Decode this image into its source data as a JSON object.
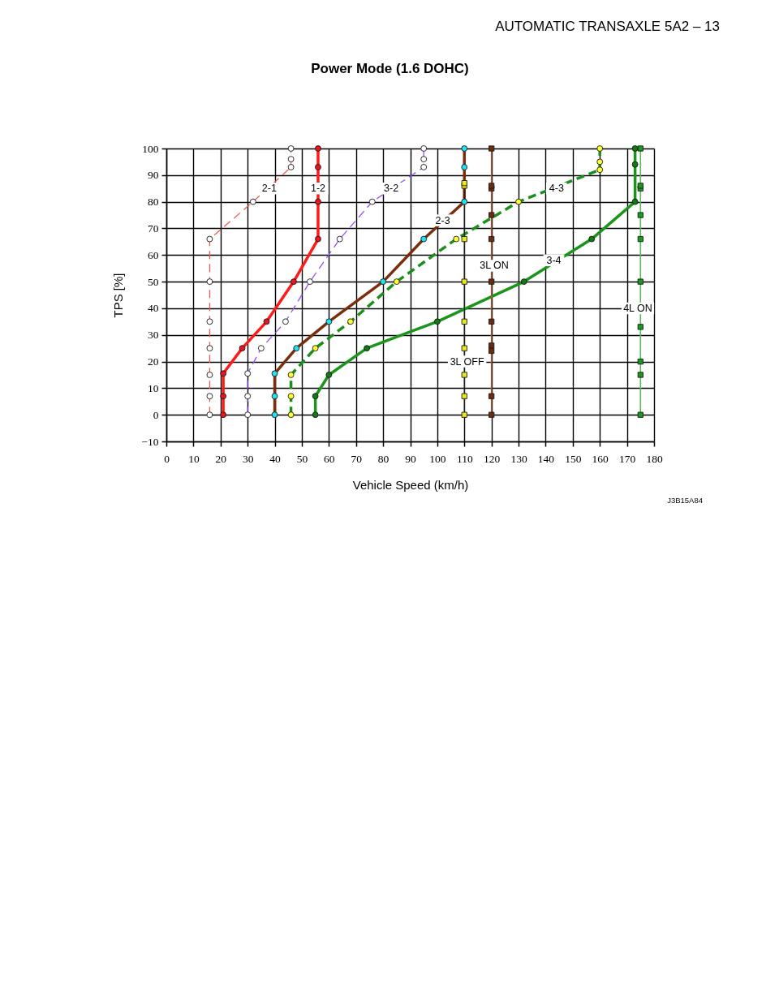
{
  "chart_data": {
    "type": "line",
    "title": "Power Mode (1.6 DOHC)",
    "xlabel": "Vehicle Speed (km/h)",
    "ylabel": "TPS [%]",
    "xlim": [
      0,
      180
    ],
    "xticks": [
      0,
      10,
      20,
      30,
      40,
      50,
      60,
      70,
      80,
      90,
      100,
      110,
      120,
      130,
      140,
      150,
      160,
      170,
      180
    ],
    "ylim": [
      -10,
      100
    ],
    "yticks": [
      -10,
      0,
      10,
      20,
      30,
      40,
      50,
      60,
      70,
      80,
      90,
      100
    ],
    "grid": true,
    "series": [
      {
        "color": "#f25a50",
        "line_style": "dashed",
        "marker": "circle",
        "x": [
          16,
          16,
          16,
          16,
          16,
          16,
          16,
          32,
          46,
          46,
          46
        ],
        "values": [
          0,
          7,
          15,
          25,
          35,
          50,
          66,
          80,
          93,
          96,
          100
        ],
        "colors": [
          "#ffffff",
          "#ffffff",
          "#ffffff",
          "#ffffff",
          "#ffffff",
          "#ffffff",
          "#ffffff",
          "#ffffff",
          "#ffffff",
          "#ffffff",
          "#ffffff"
        ]
      },
      {
        "color": "#ff1a1a",
        "line_style": "solid",
        "marker": "circle",
        "x": [
          21,
          21,
          21,
          28,
          37,
          47,
          56,
          56,
          56,
          56
        ],
        "values": [
          0,
          7,
          15.5,
          25,
          35,
          50,
          66,
          80,
          93,
          100
        ],
        "colors": [
          "#e8141e",
          "#e8141e",
          "#e8141e",
          "#e8141e",
          "#e8141e",
          "#e8141e",
          "#e8141e",
          "#e8141e",
          "#e8141e",
          "#e8141e"
        ]
      },
      {
        "color": "#9b4dff",
        "line_style": "dashed",
        "marker": "circle",
        "x": [
          30,
          30,
          30,
          35,
          44,
          53,
          64,
          76,
          95,
          95,
          95
        ],
        "values": [
          0,
          7,
          15.5,
          25,
          35,
          50,
          66,
          80,
          93,
          96,
          100
        ],
        "colors": [
          "#ffffff",
          "#ffffff",
          "#ffffff",
          "#ffffff",
          "#ffffff",
          "#ffffff",
          "#ffffff",
          "#ffffff",
          "#ffffff",
          "#ffffff",
          "#ffffff"
        ]
      },
      {
        "color": "#7a2e0c",
        "line_style": "solid",
        "marker": "circle",
        "x": [
          40,
          40,
          40,
          48,
          60,
          80,
          95,
          110,
          110,
          110
        ],
        "values": [
          0,
          7,
          15.5,
          25,
          35,
          50,
          66,
          80,
          93,
          100
        ],
        "colors": [
          "#1fe3f0",
          "#1fe3f0",
          "#1fe3f0",
          "#1fe3f0",
          "#1fe3f0",
          "#1fe3f0",
          "#1fe3f0",
          "#1fe3f0",
          "#1fe3f0",
          "#1fe3f0"
        ]
      },
      {
        "color": "#1a8f1a",
        "line_style": "dashed",
        "marker": "circle",
        "x": [
          46,
          46,
          46,
          55,
          68,
          85,
          107,
          130,
          160,
          160,
          160
        ],
        "values": [
          0,
          7,
          15,
          25,
          35,
          50,
          66,
          80,
          92,
          95,
          100
        ],
        "colors": [
          "#ffff33",
          "#ffff33",
          "#ffff33",
          "#ffff33",
          "#ffff33",
          "#ffff33",
          "#ffff33",
          "#ffff33",
          "#ffff33",
          "#ffff33",
          "#ffff33"
        ]
      },
      {
        "color": "#1a951a",
        "line_style": "solid",
        "marker": "circle",
        "x": [
          55,
          55,
          60,
          74,
          100,
          132,
          157,
          173,
          173,
          173
        ],
        "values": [
          0,
          7,
          15,
          25,
          35,
          50,
          66,
          80,
          94,
          100
        ],
        "colors": [
          "#117a11",
          "#117a11",
          "#117a11",
          "#117a11",
          "#117a11",
          "#117a11",
          "#117a11",
          "#117a11",
          "#117a11",
          "#117a11"
        ]
      },
      {
        "color": "#a65a35",
        "line_style": "solid",
        "marker": "square",
        "x": [
          120,
          120,
          120,
          120,
          120,
          120,
          120,
          120,
          120,
          120,
          120
        ],
        "values": [
          0,
          7,
          24,
          26,
          35,
          50,
          66,
          75,
          85,
          86,
          100
        ],
        "colors": [
          "#6e2a0a",
          "#6e2a0a",
          "#6e2a0a",
          "#6e2a0a",
          "#6e2a0a",
          "#6e2a0a",
          "#6e2a0a",
          "#6e2a0a",
          "#6e2a0a",
          "#6e2a0a",
          "#6e2a0a"
        ]
      },
      {
        "color": "#222222",
        "line_style": "solid",
        "marker": "square",
        "x": [
          110,
          110,
          110,
          110,
          110,
          110,
          110,
          110,
          110
        ],
        "values": [
          0,
          7,
          15,
          25,
          35,
          50,
          66,
          86,
          87
        ],
        "colors": [
          "#e8e81a",
          "#e8e81a",
          "#e8e81a",
          "#e8e81a",
          "#e8e81a",
          "#e8e81a",
          "#e8e81a",
          "#e8e81a",
          "#e8e81a"
        ]
      },
      {
        "color": "#5cb85c",
        "line_style": "solid",
        "marker": "square",
        "x": [
          175,
          175,
          175,
          175,
          175,
          175,
          175,
          175,
          175,
          175
        ],
        "values": [
          0,
          15,
          20,
          33,
          50,
          66,
          75,
          85,
          86,
          100
        ],
        "colors": [
          "#1a9a1a",
          "#1a9a1a",
          "#1a9a1a",
          "#1a9a1a",
          "#1a9a1a",
          "#1a9a1a",
          "#1a9a1a",
          "#1a9a1a",
          "#1a9a1a",
          "#1a9a1a"
        ]
      }
    ],
    "annotations": [
      "AUTOMATIC TRANSAXLE  5A2 – 13",
      "J3B15A84",
      {
        "text": "2-1",
        "x": 38,
        "y": 85
      },
      {
        "text": "1-2",
        "x": 56,
        "y": 85
      },
      {
        "text": "3-2",
        "x": 83,
        "y": 85
      },
      {
        "text": "2-3",
        "x": 102,
        "y": 73
      },
      {
        "text": "4-3",
        "x": 144,
        "y": 85
      },
      {
        "text": "3-4",
        "x": 143,
        "y": 58
      },
      {
        "text": "3L ON",
        "x": 121,
        "y": 56
      },
      {
        "text": "3L OFF",
        "x": 111,
        "y": 20
      },
      {
        "text": "4L ON",
        "x": 174,
        "y": 40
      }
    ]
  }
}
